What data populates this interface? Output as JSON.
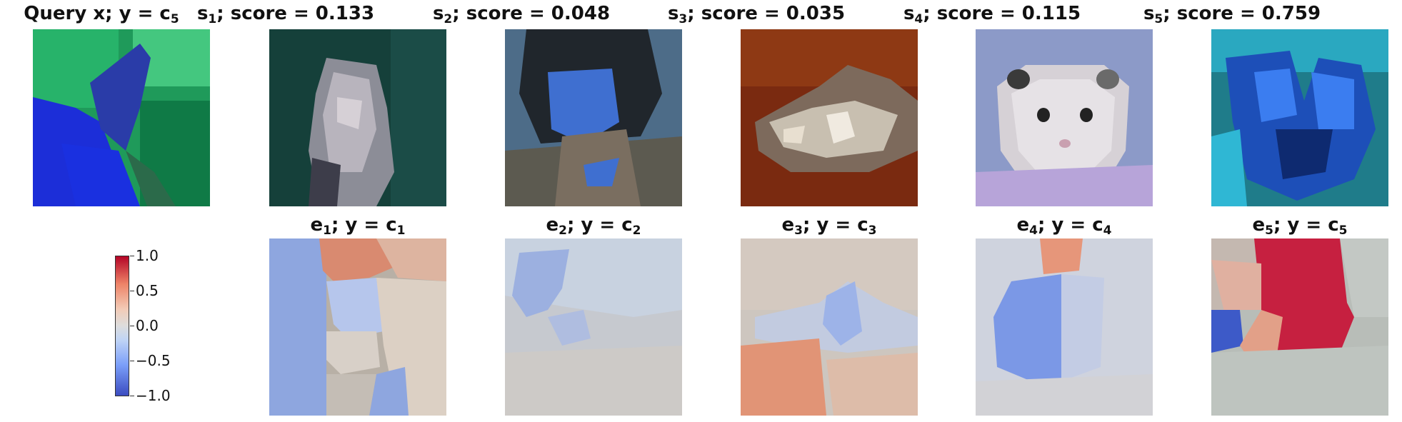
{
  "row1": [
    {
      "title_main": "Query x; y = c",
      "sub": "5",
      "score": ""
    },
    {
      "title_main": "s",
      "sub": "1",
      "score": "; score = 0.133"
    },
    {
      "title_main": "s",
      "sub": "2",
      "score": "; score = 0.048"
    },
    {
      "title_main": "s",
      "sub": "3",
      "score": "; score = 0.035"
    },
    {
      "title_main": "s",
      "sub": "4",
      "score": "; score = 0.115"
    },
    {
      "title_main": "s",
      "sub": "5",
      "score": "; score = 0.759"
    }
  ],
  "row2": [
    {
      "e": "e",
      "esub": "1",
      "mid": "; y = c",
      "csub": "1"
    },
    {
      "e": "e",
      "esub": "2",
      "mid": "; y = c",
      "csub": "2"
    },
    {
      "e": "e",
      "esub": "3",
      "mid": "; y = c",
      "csub": "3"
    },
    {
      "e": "e",
      "esub": "4",
      "mid": "; y = c",
      "csub": "4"
    },
    {
      "e": "e",
      "esub": "5",
      "mid": "; y = c",
      "csub": "5"
    }
  ],
  "colorbar": {
    "ticks": [
      "1.0",
      "0.5",
      "0.0",
      "−0.5",
      "−1.0"
    ],
    "range": [
      -1.0,
      1.0
    ],
    "colormap": "coolwarm"
  }
}
